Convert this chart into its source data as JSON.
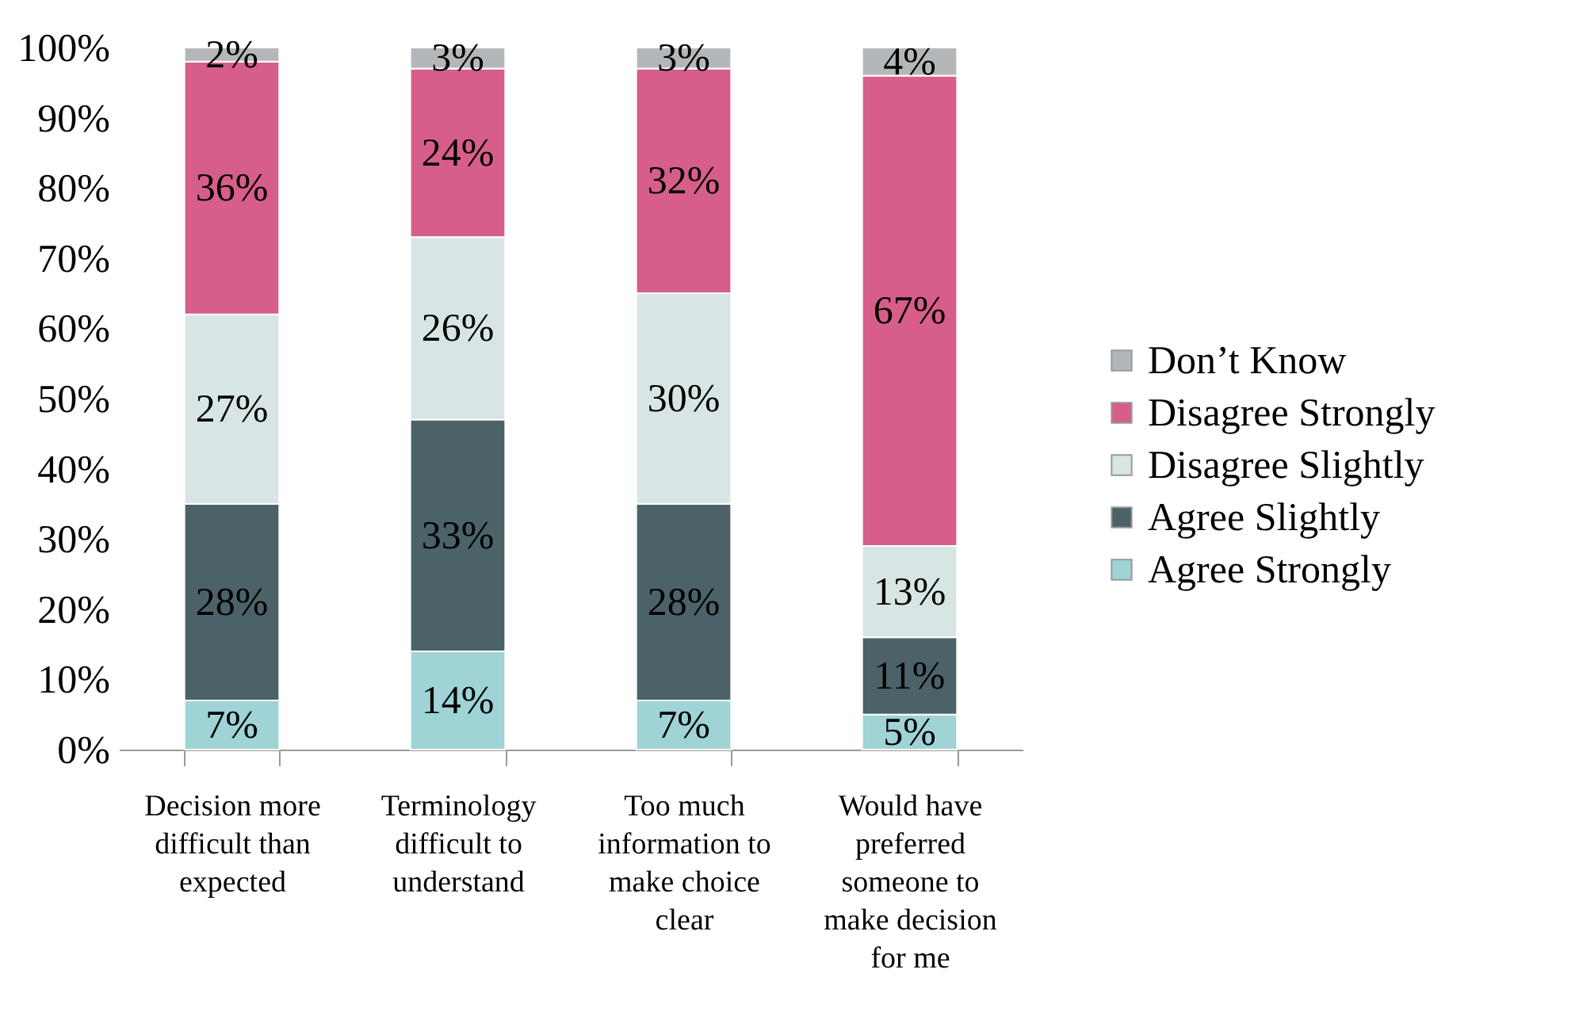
{
  "chart_data": {
    "type": "bar",
    "stacked": true,
    "categories": [
      "Decision more difficult than expected",
      "Terminology difficult to understand",
      "Too much information to make choice clear",
      "Would have preferred someone to make decision for me"
    ],
    "series": [
      {
        "name": "Agree Strongly",
        "color": "#9fd3d6",
        "values": [
          7,
          14,
          7,
          5
        ],
        "value_labels": [
          "7%",
          "14%",
          "7%",
          "5%"
        ]
      },
      {
        "name": "Agree Slightly",
        "color": "#4b6268",
        "values": [
          28,
          33,
          28,
          11
        ],
        "value_labels": [
          "28%",
          "33%",
          "28%",
          "11%"
        ]
      },
      {
        "name": "Disagree Slightly",
        "color": "#d8e5e5",
        "values": [
          27,
          26,
          30,
          13
        ],
        "value_labels": [
          "27%",
          "26%",
          "30%",
          "13%"
        ]
      },
      {
        "name": "Disagree Strongly",
        "color": "#d75e8a",
        "values": [
          36,
          24,
          32,
          67
        ],
        "value_labels": [
          "36%",
          "24%",
          "32%",
          "67%"
        ]
      },
      {
        "name": "Don’t Know",
        "color": "#b4b7b9",
        "values": [
          2,
          3,
          3,
          4
        ],
        "value_labels": [
          "2%",
          "3%",
          "3%",
          "4%"
        ]
      }
    ],
    "ylim": [
      0,
      100
    ],
    "yticks": [
      {
        "value": 0,
        "label": "0%"
      },
      {
        "value": 10,
        "label": "10%"
      },
      {
        "value": 20,
        "label": "20%"
      },
      {
        "value": 30,
        "label": "30%"
      },
      {
        "value": 40,
        "label": "40%"
      },
      {
        "value": 50,
        "label": "50%"
      },
      {
        "value": 60,
        "label": "60%"
      },
      {
        "value": 70,
        "label": "70%"
      },
      {
        "value": 80,
        "label": "80%"
      },
      {
        "value": 90,
        "label": "90%"
      },
      {
        "value": 100,
        "label": "100%"
      }
    ],
    "legend": "right"
  }
}
